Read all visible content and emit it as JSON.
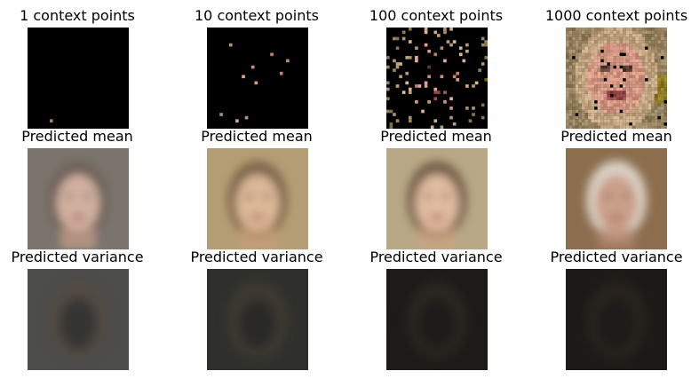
{
  "rows": [
    {
      "kind": "context",
      "panels": [
        {
          "title": "1 context points",
          "context_points": 1
        },
        {
          "title": "10 context points",
          "context_points": 10
        },
        {
          "title": "100 context points",
          "context_points": 100
        },
        {
          "title": "1000 context points",
          "context_points": 1000
        }
      ]
    },
    {
      "kind": "mean",
      "panels": [
        {
          "title": "Predicted mean"
        },
        {
          "title": "Predicted mean"
        },
        {
          "title": "Predicted mean"
        },
        {
          "title": "Predicted mean"
        }
      ]
    },
    {
      "kind": "variance",
      "panels": [
        {
          "title": "Predicted variance"
        },
        {
          "title": "Predicted variance"
        },
        {
          "title": "Predicted variance"
        },
        {
          "title": "Predicted variance"
        }
      ]
    }
  ],
  "colors": {
    "context_background": "#000000",
    "mean_backgrounds": [
      "#7a746c",
      "#b59d75",
      "#b8a886",
      "#8c6e4f"
    ],
    "variance_backgrounds": [
      "#4d4d4b",
      "#2f302c",
      "#1c1b18",
      "#1c1a17"
    ]
  }
}
